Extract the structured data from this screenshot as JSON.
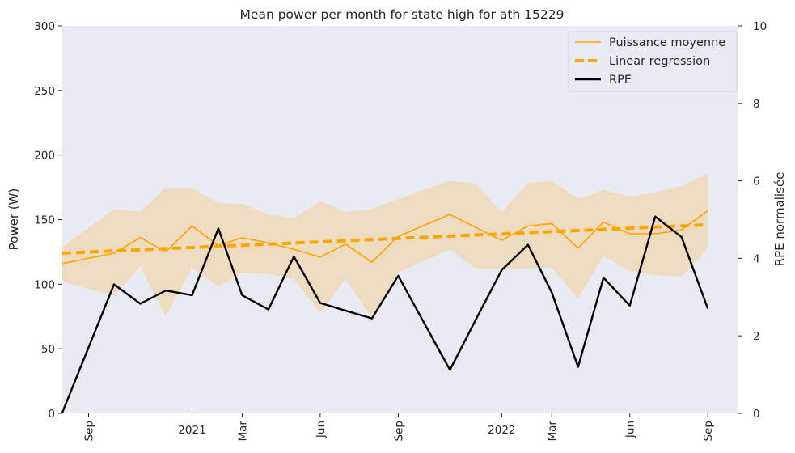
{
  "chart_data": {
    "type": "line",
    "title": "Mean power per month for state high for ath 15229",
    "ylabel": "Power (W)",
    "y2label": "RPE normalisée",
    "ylim": [
      0,
      300
    ],
    "y2lim": [
      0,
      10
    ],
    "yticks": [
      0,
      50,
      100,
      150,
      200,
      250,
      300
    ],
    "y2ticks": [
      0,
      2,
      4,
      6,
      8,
      10
    ],
    "xlim": [
      "2020-08-01",
      "2022-10-07"
    ],
    "xticks": [
      {
        "date": "2020-09-01",
        "label": "Sep",
        "rotated": true
      },
      {
        "date": "2021-01-01",
        "label": "2021",
        "rotated": false
      },
      {
        "date": "2021-03-01",
        "label": "Mar",
        "rotated": true
      },
      {
        "date": "2021-06-01",
        "label": "Jun",
        "rotated": true
      },
      {
        "date": "2021-09-01",
        "label": "Sep",
        "rotated": true
      },
      {
        "date": "2022-01-01",
        "label": "2022",
        "rotated": false
      },
      {
        "date": "2022-03-01",
        "label": "Mar",
        "rotated": true
      },
      {
        "date": "2022-06-01",
        "label": "Jun",
        "rotated": true
      },
      {
        "date": "2022-09-01",
        "label": "Sep",
        "rotated": true
      }
    ],
    "legend_position": "top-right",
    "grid": false,
    "background_color": "#eaeaf2",
    "series": [
      {
        "name": "Puissance moyenne",
        "type": "line",
        "axis": "left",
        "color": "#ffa500",
        "x": [
          "2020-08-01",
          "2020-10-01",
          "2020-11-01",
          "2020-12-01",
          "2021-01-01",
          "2021-02-01",
          "2021-03-01",
          "2021-04-01",
          "2021-05-01",
          "2021-06-01",
          "2021-07-01",
          "2021-08-01",
          "2021-09-01",
          "2021-11-01",
          "2021-12-01",
          "2022-01-01",
          "2022-02-01",
          "2022-03-01",
          "2022-04-01",
          "2022-05-01",
          "2022-06-01",
          "2022-07-01",
          "2022-08-01",
          "2022-09-01"
        ],
        "values": [
          116,
          124,
          136,
          125,
          145,
          130,
          136,
          132,
          127,
          121,
          131,
          117,
          137,
          154,
          144,
          134,
          145,
          147,
          128,
          148,
          139,
          139,
          142,
          157
        ]
      },
      {
        "name": "Std band",
        "type": "band",
        "axis": "left",
        "color": "#ffa500",
        "opacity": 0.2,
        "x": [
          "2020-08-01",
          "2020-10-01",
          "2020-11-01",
          "2020-12-01",
          "2021-01-01",
          "2021-02-01",
          "2021-03-01",
          "2021-04-01",
          "2021-05-01",
          "2021-06-01",
          "2021-07-01",
          "2021-08-01",
          "2021-09-01",
          "2021-11-01",
          "2021-12-01",
          "2022-01-01",
          "2022-02-01",
          "2022-03-01",
          "2022-04-01",
          "2022-05-01",
          "2022-06-01",
          "2022-07-01",
          "2022-08-01",
          "2022-09-01"
        ],
        "lower": [
          102,
          91,
          114,
          75,
          113,
          98,
          109,
          108,
          104,
          78,
          104,
          74,
          109,
          127,
          112,
          112,
          112,
          113,
          89,
          122,
          110,
          107,
          106,
          128
        ],
        "upper": [
          129,
          158,
          156,
          175,
          174,
          163,
          162,
          154,
          151,
          164,
          156,
          158,
          166,
          180,
          178,
          156,
          178,
          180,
          166,
          173,
          168,
          171,
          176,
          186
        ]
      },
      {
        "name": "Linear regression",
        "type": "line",
        "style": "dashed",
        "axis": "left",
        "color": "#ffa500",
        "x": [
          "2020-08-01",
          "2022-09-01"
        ],
        "values": [
          124,
          146
        ]
      },
      {
        "name": "RPE",
        "type": "line",
        "axis": "right",
        "color": "#000000",
        "x": [
          "2020-08-01",
          "2020-10-01",
          "2020-11-01",
          "2020-12-01",
          "2021-01-01",
          "2021-02-01",
          "2021-03-01",
          "2021-04-01",
          "2021-05-01",
          "2021-06-01",
          "2021-07-01",
          "2021-08-01",
          "2021-09-01",
          "2021-11-01",
          "2021-12-01",
          "2022-01-01",
          "2022-02-01",
          "2022-03-01",
          "2022-04-01",
          "2022-05-01",
          "2022-06-01",
          "2022-07-01",
          "2022-08-01",
          "2022-09-01"
        ],
        "values": [
          0.02,
          3.33,
          2.83,
          3.17,
          3.05,
          4.77,
          3.05,
          2.68,
          4.05,
          2.85,
          2.65,
          2.45,
          3.55,
          1.12,
          2.4,
          3.7,
          4.35,
          3.12,
          1.2,
          3.5,
          2.78,
          5.08,
          4.55,
          2.7
        ]
      }
    ],
    "legend": [
      {
        "label": "Puissance moyenne",
        "color": "#ffa500",
        "style": "solid-thin"
      },
      {
        "label": "Linear regression",
        "color": "#ffa500",
        "style": "dashed-thick"
      },
      {
        "label": "RPE",
        "color": "#000000",
        "style": "solid"
      }
    ]
  }
}
